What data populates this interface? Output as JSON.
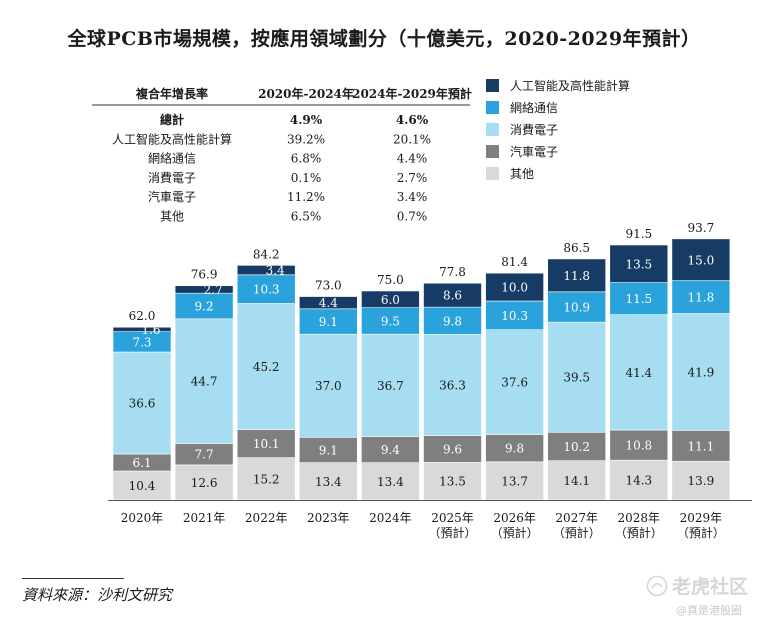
{
  "title": "全球PCB市場規模，按應用領域劃分（十億美元，2020-2029年預計）",
  "source": "資料來源：沙利文研究",
  "watermark": {
    "main": "老虎社区",
    "sub": "@真是港股圈"
  },
  "cagr_table": {
    "header": [
      "複合年增長率",
      "2020年-2024年",
      "2024年-2029年預計"
    ],
    "rows": [
      [
        "總計",
        "4.9%",
        "4.6%"
      ],
      [
        "人工智能及高性能計算",
        "39.2%",
        "20.1%"
      ],
      [
        "網絡通信",
        "6.8%",
        "4.4%"
      ],
      [
        "消費電子",
        "0.1%",
        "2.7%"
      ],
      [
        "汽車電子",
        "11.2%",
        "3.4%"
      ],
      [
        "其他",
        "6.5%",
        "0.7%"
      ]
    ]
  },
  "chart_data": {
    "type": "bar",
    "stacked": true,
    "categories": [
      "2020年",
      "2021年",
      "2022年",
      "2023年",
      "2024年",
      "2025年\n（預計）",
      "2026年\n（預計）",
      "2027年\n（預計）",
      "2028年\n（預計）",
      "2029年\n（預計）"
    ],
    "totals": [
      "62.0",
      "76.9",
      "84.2",
      "73.0",
      "75.0",
      "77.8",
      "81.4",
      "86.5",
      "91.5",
      "93.7"
    ],
    "series": [
      {
        "name": "其他",
        "color": "#d9d9d9",
        "values": [
          10.4,
          12.6,
          15.2,
          13.4,
          13.4,
          13.5,
          13.7,
          14.1,
          14.3,
          13.9
        ]
      },
      {
        "name": "汽車電子",
        "color": "#7f7f7f",
        "values": [
          6.1,
          7.7,
          10.1,
          9.1,
          9.4,
          9.6,
          9.8,
          10.2,
          10.8,
          11.1
        ]
      },
      {
        "name": "消費電子",
        "color": "#a6ddf0",
        "values": [
          36.6,
          44.7,
          45.2,
          37.0,
          36.7,
          36.3,
          37.6,
          39.5,
          41.4,
          41.9
        ]
      },
      {
        "name": "網絡通信",
        "color": "#2aa3dc",
        "values": [
          7.3,
          9.2,
          10.3,
          9.1,
          9.5,
          9.8,
          10.3,
          10.9,
          11.5,
          11.8
        ]
      },
      {
        "name": "人工智能及高性能計算",
        "color": "#163c66",
        "values": [
          1.6,
          2.7,
          3.4,
          4.4,
          6.0,
          8.6,
          10.0,
          11.8,
          13.5,
          15.0
        ]
      }
    ],
    "legend": [
      {
        "name": "人工智能及高性能計算",
        "color": "#163c66"
      },
      {
        "name": "網絡通信",
        "color": "#2aa3dc"
      },
      {
        "name": "消費電子",
        "color": "#a6ddf0"
      },
      {
        "name": "汽車電子",
        "color": "#7f7f7f"
      },
      {
        "name": "其他",
        "color": "#d9d9d9"
      }
    ],
    "ylim": [
      0,
      100
    ],
    "grid": false,
    "legend_position": "top-right"
  }
}
